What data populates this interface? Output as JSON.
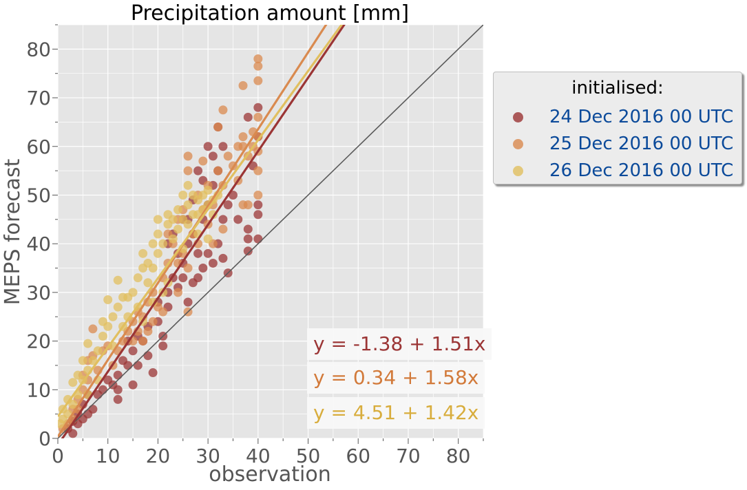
{
  "chart_data": {
    "type": "scatter",
    "title": "Precipitation amount [mm]",
    "xlabel": "observation",
    "ylabel": "MEPS forecast",
    "xlim": [
      0,
      85
    ],
    "ylim": [
      0,
      85
    ],
    "xticks": [
      "0",
      "10",
      "20",
      "30",
      "40",
      "50",
      "60",
      "70",
      "80"
    ],
    "yticks": [
      "0",
      "10",
      "20",
      "30",
      "40",
      "50",
      "60",
      "70",
      "80"
    ],
    "grid": true,
    "legend": {
      "title": "initialised:",
      "placement": "outside-right"
    },
    "reference_line": "y = x",
    "series": [
      {
        "name": "24 Dec 2016 00 UTC",
        "color": "#9b3535",
        "fit": {
          "intercept": -1.38,
          "slope": 1.51,
          "label": "y = -1.38 + 1.51x"
        },
        "points": [
          [
            2,
            2
          ],
          [
            3,
            1
          ],
          [
            3,
            3.5
          ],
          [
            4,
            3
          ],
          [
            4,
            5
          ],
          [
            5,
            4
          ],
          [
            5,
            7
          ],
          [
            6,
            5
          ],
          [
            6,
            9
          ],
          [
            7,
            6
          ],
          [
            8,
            9
          ],
          [
            9,
            10
          ],
          [
            10,
            12
          ],
          [
            11,
            11
          ],
          [
            12,
            8
          ],
          [
            12,
            10
          ],
          [
            12,
            13
          ],
          [
            13,
            16
          ],
          [
            14,
            15
          ],
          [
            15,
            11
          ],
          [
            15,
            18
          ],
          [
            16,
            15
          ],
          [
            17,
            20
          ],
          [
            18,
            17
          ],
          [
            19,
            13.5
          ],
          [
            20,
            24
          ],
          [
            21,
            19
          ],
          [
            21,
            21
          ],
          [
            22,
            27
          ],
          [
            22,
            30
          ],
          [
            23,
            33
          ],
          [
            24,
            31
          ],
          [
            24,
            38
          ],
          [
            25,
            33
          ],
          [
            25,
            36
          ],
          [
            26,
            28
          ],
          [
            26,
            40
          ],
          [
            27,
            32
          ],
          [
            27,
            42
          ],
          [
            28,
            33
          ],
          [
            28,
            38
          ],
          [
            29,
            35
          ],
          [
            29,
            45
          ],
          [
            30,
            38
          ],
          [
            30,
            48
          ],
          [
            31,
            36
          ],
          [
            31,
            52
          ],
          [
            32,
            40
          ],
          [
            32,
            55
          ],
          [
            33,
            45
          ],
          [
            33,
            60
          ],
          [
            30,
            60
          ],
          [
            32,
            64
          ],
          [
            28,
            55
          ],
          [
            34,
            48
          ],
          [
            35,
            50
          ],
          [
            38,
            38.5
          ],
          [
            38,
            41
          ],
          [
            38,
            43
          ],
          [
            38,
            66
          ],
          [
            39,
            56
          ],
          [
            40,
            41
          ],
          [
            40,
            46
          ],
          [
            40,
            48
          ],
          [
            40,
            62
          ],
          [
            40,
            68
          ],
          [
            36,
            45
          ],
          [
            27,
            49
          ],
          [
            29,
            53
          ],
          [
            31,
            58
          ],
          [
            26,
            45
          ],
          [
            34,
            34
          ],
          [
            20,
            28
          ],
          [
            18,
            23
          ],
          [
            16,
            21
          ],
          [
            23,
            42
          ],
          [
            22,
            40
          ],
          [
            14,
            20
          ],
          [
            25,
            45
          ],
          [
            33,
            37
          ]
        ]
      },
      {
        "name": "25 Dec 2016 00 UTC",
        "color": "#d98a4f",
        "fit": {
          "intercept": 0.34,
          "slope": 1.58,
          "label": "y = 0.34 + 1.58x"
        },
        "points": [
          [
            1,
            2
          ],
          [
            2,
            3
          ],
          [
            3,
            4
          ],
          [
            3,
            6
          ],
          [
            4,
            6
          ],
          [
            4,
            8
          ],
          [
            5,
            10
          ],
          [
            5,
            13
          ],
          [
            6,
            12
          ],
          [
            6,
            16
          ],
          [
            7,
            17
          ],
          [
            7,
            22.5
          ],
          [
            8,
            14
          ],
          [
            9,
            18
          ],
          [
            10,
            19
          ],
          [
            11,
            15
          ],
          [
            12,
            18
          ],
          [
            13,
            20
          ],
          [
            14,
            22
          ],
          [
            15,
            20
          ],
          [
            15,
            24
          ],
          [
            16,
            22
          ],
          [
            16,
            26
          ],
          [
            17,
            25
          ],
          [
            18,
            22
          ],
          [
            18,
            28
          ],
          [
            19,
            30
          ],
          [
            20,
            27
          ],
          [
            21,
            33
          ],
          [
            22,
            36
          ],
          [
            22,
            42
          ],
          [
            23,
            40
          ],
          [
            24,
            36
          ],
          [
            24,
            45
          ],
          [
            25,
            38
          ],
          [
            25,
            47
          ],
          [
            26,
            26
          ],
          [
            26,
            35
          ],
          [
            26,
            55
          ],
          [
            26,
            58
          ],
          [
            27,
            42
          ],
          [
            28,
            40
          ],
          [
            28,
            50
          ],
          [
            29,
            47
          ],
          [
            29,
            57
          ],
          [
            30,
            44
          ],
          [
            30,
            52
          ],
          [
            31,
            48
          ],
          [
            32,
            55
          ],
          [
            32,
            64
          ],
          [
            33,
            52
          ],
          [
            33,
            67.5
          ],
          [
            35,
            56
          ],
          [
            36,
            53
          ],
          [
            37,
            48
          ],
          [
            37,
            60
          ],
          [
            37,
            62
          ],
          [
            37,
            72.5
          ],
          [
            38,
            48
          ],
          [
            38,
            58
          ],
          [
            39,
            60
          ],
          [
            39,
            63
          ],
          [
            40,
            55
          ],
          [
            40,
            62
          ],
          [
            40,
            66
          ],
          [
            40,
            73.5
          ],
          [
            40,
            76.5
          ],
          [
            40,
            78
          ],
          [
            40,
            50
          ],
          [
            40,
            59
          ],
          [
            24,
            30
          ],
          [
            21,
            26
          ],
          [
            19,
            24
          ],
          [
            17,
            20
          ],
          [
            34,
            58
          ],
          [
            36,
            60
          ],
          [
            33,
            43
          ],
          [
            31,
            40
          ]
        ]
      },
      {
        "name": "26 Dec 2016 00 UTC",
        "color": "#e1bf5f",
        "fit": {
          "intercept": 4.51,
          "slope": 1.42,
          "label": "y = 4.51 + 1.42x"
        },
        "points": [
          [
            0.5,
            3
          ],
          [
            1,
            4
          ],
          [
            1,
            6
          ],
          [
            2,
            5
          ],
          [
            2,
            8
          ],
          [
            3,
            7
          ],
          [
            3,
            11.5
          ],
          [
            4,
            9
          ],
          [
            4,
            13
          ],
          [
            5,
            12
          ],
          [
            5,
            16
          ],
          [
            6,
            14
          ],
          [
            6,
            19.5
          ],
          [
            7,
            16
          ],
          [
            8,
            18
          ],
          [
            9,
            21
          ],
          [
            9,
            24
          ],
          [
            10,
            23
          ],
          [
            10,
            28.5
          ],
          [
            11,
            25
          ],
          [
            12,
            27
          ],
          [
            12,
            32.5
          ],
          [
            13,
            23
          ],
          [
            13,
            29
          ],
          [
            14,
            25
          ],
          [
            15,
            30
          ],
          [
            16,
            27
          ],
          [
            16,
            33
          ],
          [
            17,
            35
          ],
          [
            17,
            38
          ],
          [
            18,
            32
          ],
          [
            18,
            36
          ],
          [
            19,
            35
          ],
          [
            19,
            40
          ],
          [
            20,
            38
          ],
          [
            20,
            42
          ],
          [
            21,
            40
          ],
          [
            22,
            44
          ],
          [
            22,
            46
          ],
          [
            23,
            41
          ],
          [
            23,
            45
          ],
          [
            24,
            43
          ],
          [
            24,
            47
          ],
          [
            25,
            45
          ],
          [
            25,
            50
          ],
          [
            26,
            44
          ],
          [
            26,
            48
          ],
          [
            27,
            46
          ],
          [
            27,
            50
          ],
          [
            28,
            46
          ],
          [
            28,
            49
          ],
          [
            29,
            47
          ],
          [
            29,
            50
          ],
          [
            30,
            48
          ],
          [
            30,
            51
          ],
          [
            31,
            46
          ],
          [
            31,
            49
          ],
          [
            32,
            50
          ],
          [
            21,
            30
          ],
          [
            22,
            32
          ],
          [
            25,
            39
          ],
          [
            28,
            42
          ],
          [
            30,
            41
          ],
          [
            14,
            29
          ],
          [
            11,
            19
          ],
          [
            8,
            12
          ],
          [
            6,
            9
          ],
          [
            19,
            28
          ],
          [
            17,
            24
          ],
          [
            26,
            52
          ],
          [
            20,
            45
          ]
        ]
      }
    ]
  }
}
